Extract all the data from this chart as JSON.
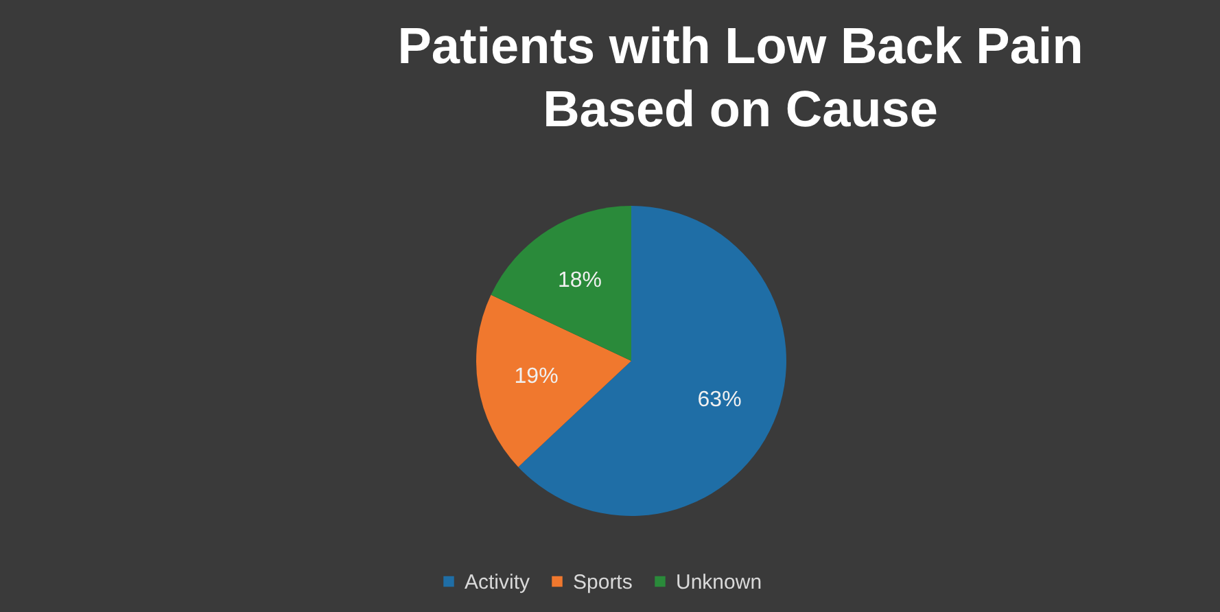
{
  "chart_data": {
    "type": "pie",
    "title": "Patients with Low Back Pain\nBased on Cause",
    "categories": [
      "Activity",
      "Sports",
      "Unknown"
    ],
    "values": [
      63,
      19,
      18
    ],
    "value_labels": [
      "63%",
      "19%",
      "18%"
    ],
    "colors": [
      "#1f6ea6",
      "#f0782e",
      "#2a8a3a"
    ],
    "legend": "bottom"
  }
}
